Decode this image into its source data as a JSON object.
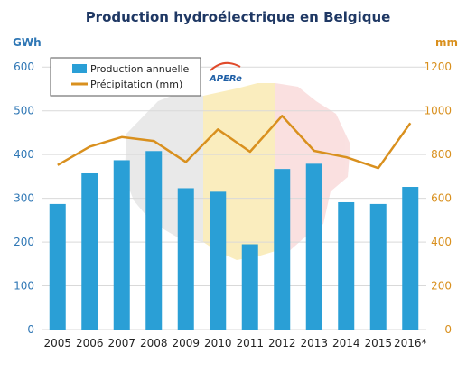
{
  "chart_data": {
    "type": "bar",
    "title": "Production hydroélectrique en Belgique",
    "categories": [
      "2005",
      "2006",
      "2007",
      "2008",
      "2009",
      "2010",
      "2011",
      "2012",
      "2013",
      "2014",
      "2015",
      "2016*"
    ],
    "series": [
      {
        "name": "Production annuelle",
        "type": "bar",
        "axis": "left",
        "values": [
          287,
          357,
          387,
          408,
          323,
          315,
          195,
          367,
          379,
          291,
          287,
          326
        ]
      },
      {
        "name": "Précipitation (mm)",
        "type": "line",
        "axis": "right",
        "values": [
          752,
          836,
          880,
          862,
          766,
          915,
          813,
          977,
          817,
          788,
          738,
          944
        ]
      }
    ],
    "y_left": {
      "unit": "GWh",
      "ylim": [
        0,
        650
      ],
      "ticks": [
        0,
        100,
        200,
        300,
        400,
        500,
        600
      ]
    },
    "y_right": {
      "unit": "mm",
      "ylim": [
        0,
        1300
      ],
      "ticks": [
        0,
        200,
        400,
        600,
        800,
        1000,
        1200
      ]
    },
    "grid": true,
    "legend_position": "top-left",
    "colors": {
      "bar": "#2a9fd6",
      "line": "#d9901e",
      "left_axis": "#2f77b5",
      "right_axis": "#d9901e",
      "title": "#1f3864",
      "grid": "#d9d9d9"
    },
    "watermark": {
      "logo_text": "APERe"
    }
  }
}
